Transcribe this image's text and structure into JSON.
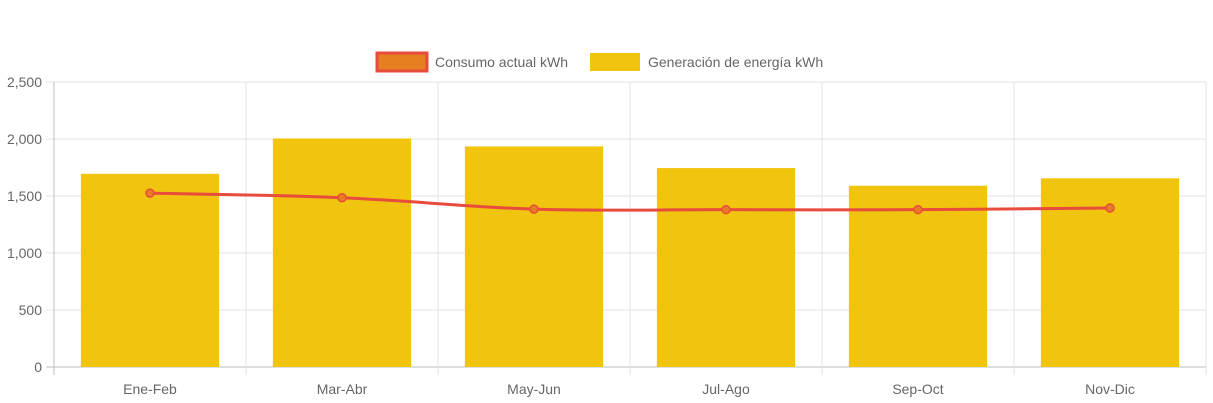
{
  "chart_data": {
    "type": "bar",
    "categories": [
      "Ene-Feb",
      "Mar-Abr",
      "May-Jun",
      "Jul-Ago",
      "Sep-Oct",
      "Nov-Dic"
    ],
    "series": [
      {
        "name": "Consumo actual kWh",
        "kind": "line",
        "values": [
          1525,
          1485,
          1385,
          1380,
          1380,
          1395
        ],
        "color": "#e74c3c",
        "fill_color": "#e67e22"
      },
      {
        "name": "Generación de energía kWh",
        "kind": "bar",
        "values": [
          1695,
          2005,
          1935,
          1745,
          1590,
          1655
        ],
        "color": "#f1c40f"
      }
    ],
    "y_ticks": [
      "0",
      "500",
      "1,000",
      "1,500",
      "2,000",
      "2,500"
    ],
    "ylim": [
      0,
      2500
    ],
    "grid": true,
    "legend_position": "top-center"
  }
}
